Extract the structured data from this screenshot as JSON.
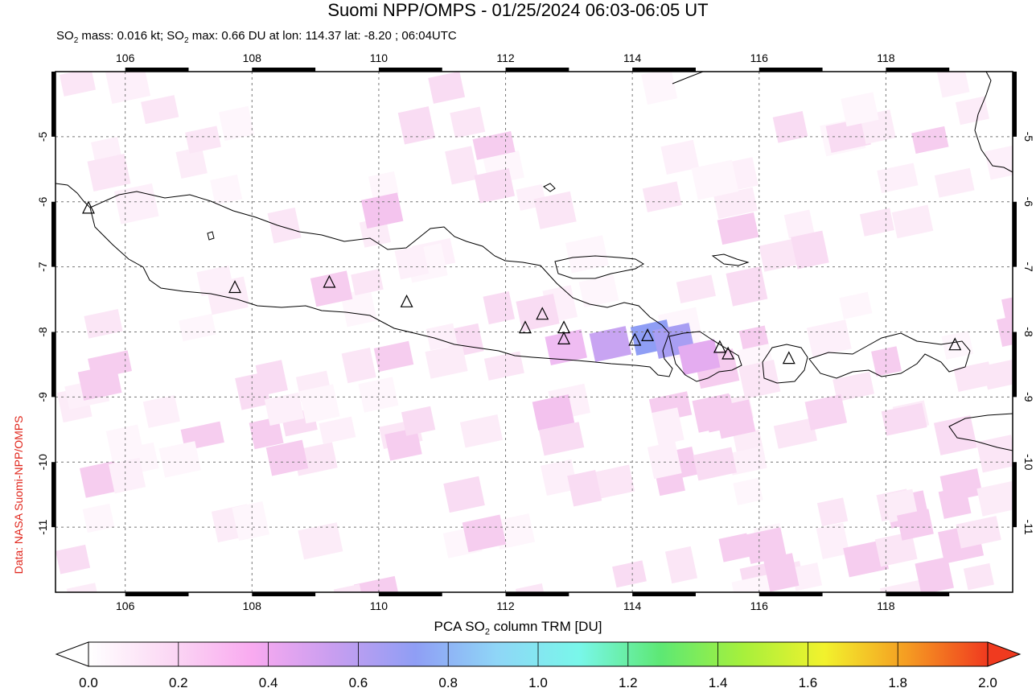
{
  "header": {
    "title": "Suomi NPP/OMPS - 01/25/2024 06:03-06:05 UT",
    "subtitle_prefix": "SO",
    "subtitle_sub": "2",
    "subtitle_mid": " mass: 0.016 kt; SO",
    "subtitle_sub2": "2",
    "subtitle_rest": " max: 0.66 DU at lon: 114.37 lat: -8.20 ; 06:04UTC"
  },
  "credit": "Data: NASA Suomi-NPP/OMPS",
  "map": {
    "lon_range": [
      104.9,
      120.0
    ],
    "lat_range": [
      -12.0,
      -4.0
    ],
    "lon_ticks": [
      "106",
      "108",
      "110",
      "112",
      "114",
      "116",
      "118"
    ],
    "lat_ticks": [
      "-5",
      "-6",
      "-7",
      "-8",
      "-9",
      "-10",
      "-11"
    ],
    "volcanoes": [
      {
        "lon": 105.42,
        "lat": -6.1
      },
      {
        "lon": 107.73,
        "lat": -7.32
      },
      {
        "lon": 109.22,
        "lat": -7.24
      },
      {
        "lon": 110.44,
        "lat": -7.54
      },
      {
        "lon": 112.31,
        "lat": -7.94
      },
      {
        "lon": 112.58,
        "lat": -7.73
      },
      {
        "lon": 112.92,
        "lat": -7.94
      },
      {
        "lon": 112.92,
        "lat": -8.11
      },
      {
        "lon": 114.04,
        "lat": -8.13
      },
      {
        "lon": 114.24,
        "lat": -8.06
      },
      {
        "lon": 115.38,
        "lat": -8.24
      },
      {
        "lon": 115.51,
        "lat": -8.34
      },
      {
        "lon": 116.47,
        "lat": -8.41
      },
      {
        "lon": 119.09,
        "lat": -8.2
      }
    ],
    "so2_max_du": 0.66
  },
  "colorbar": {
    "title_prefix": "PCA SO",
    "title_sub": "2",
    "title_rest": " column TRM [DU]",
    "ticks": [
      "0.0",
      "0.2",
      "0.4",
      "0.6",
      "0.8",
      "1.0",
      "1.2",
      "1.4",
      "1.6",
      "1.8",
      "2.0"
    ],
    "colors": [
      "#ffffff",
      "#fbd8f4",
      "#f9aaf0",
      "#c89ef0",
      "#8f9ef5",
      "#8fd6f7",
      "#79f7ea",
      "#5de874",
      "#a6f03c",
      "#f2f22d",
      "#f59d22",
      "#f03a1f"
    ]
  }
}
